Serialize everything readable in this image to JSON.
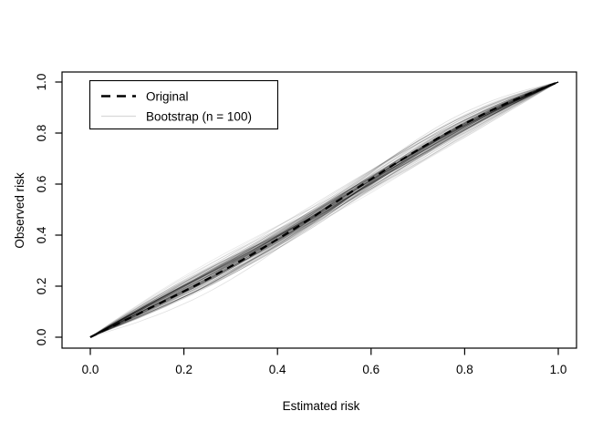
{
  "figure": {
    "background": "#ffffff",
    "border_color": "#000000"
  },
  "legend": {
    "items": [
      {
        "label": "Original",
        "sample_style": "dashed",
        "color": "#000000",
        "line_width": 2.6,
        "dash": "10 7"
      },
      {
        "label": "Bootstrap (n = 100)",
        "sample_style": "solid",
        "color": "#d9d9d9",
        "line_width": 1.3,
        "dash": ""
      }
    ]
  },
  "chart_data": {
    "type": "line",
    "title": "",
    "xlabel": "Estimated risk",
    "ylabel": "Observed risk",
    "xlim": [
      0,
      1
    ],
    "ylim": [
      0,
      1
    ],
    "grid": false,
    "legend_position": "top-left",
    "x_ticks": [
      0,
      0.2,
      0.4,
      0.6,
      0.8,
      1.0
    ],
    "x_tick_labels": [
      "0.0",
      "0.2",
      "0.4",
      "0.6",
      "0.8",
      "1.0"
    ],
    "y_ticks": [
      0,
      0.2,
      0.4,
      0.6,
      0.8,
      1.0
    ],
    "y_tick_labels": [
      "0.0",
      "0.2",
      "0.4",
      "0.6",
      "0.8",
      "1.0"
    ],
    "x": [
      0,
      0.025,
      0.05,
      0.075,
      0.1,
      0.125,
      0.15,
      0.175,
      0.2,
      0.225,
      0.25,
      0.275,
      0.3,
      0.325,
      0.35,
      0.375,
      0.4,
      0.425,
      0.45,
      0.475,
      0.5,
      0.525,
      0.55,
      0.575,
      0.6,
      0.625,
      0.65,
      0.675,
      0.7,
      0.725,
      0.75,
      0.775,
      0.8,
      0.825,
      0.85,
      0.875,
      0.9,
      0.925,
      0.95,
      0.975,
      1.0
    ],
    "series": [
      {
        "name": "Original",
        "style": "dashed",
        "color": "#000000",
        "line_width": 2.3,
        "dash": "8 6",
        "values": [
          0,
          0.023,
          0.045,
          0.067,
          0.089,
          0.112,
          0.134,
          0.157,
          0.18,
          0.203,
          0.227,
          0.252,
          0.277,
          0.303,
          0.329,
          0.356,
          0.384,
          0.412,
          0.441,
          0.47,
          0.5,
          0.53,
          0.56,
          0.59,
          0.619,
          0.649,
          0.678,
          0.706,
          0.734,
          0.761,
          0.788,
          0.813,
          0.837,
          0.86,
          0.883,
          0.904,
          0.925,
          0.944,
          0.963,
          0.982,
          1.0
        ]
      },
      {
        "name": "Bootstrap",
        "style": "solid",
        "n": 100,
        "color": "#000000",
        "opacity_min": 0.07,
        "opacity_max": 0.18,
        "line_width": 0.8,
        "generator": {
          "seed": 20,
          "amp_mid": 0.02,
          "amp_tilt": 0.015,
          "tilt_bias": 0.009,
          "amp_wiggle": 0.005,
          "samples_per_curve": 51
        }
      }
    ]
  }
}
